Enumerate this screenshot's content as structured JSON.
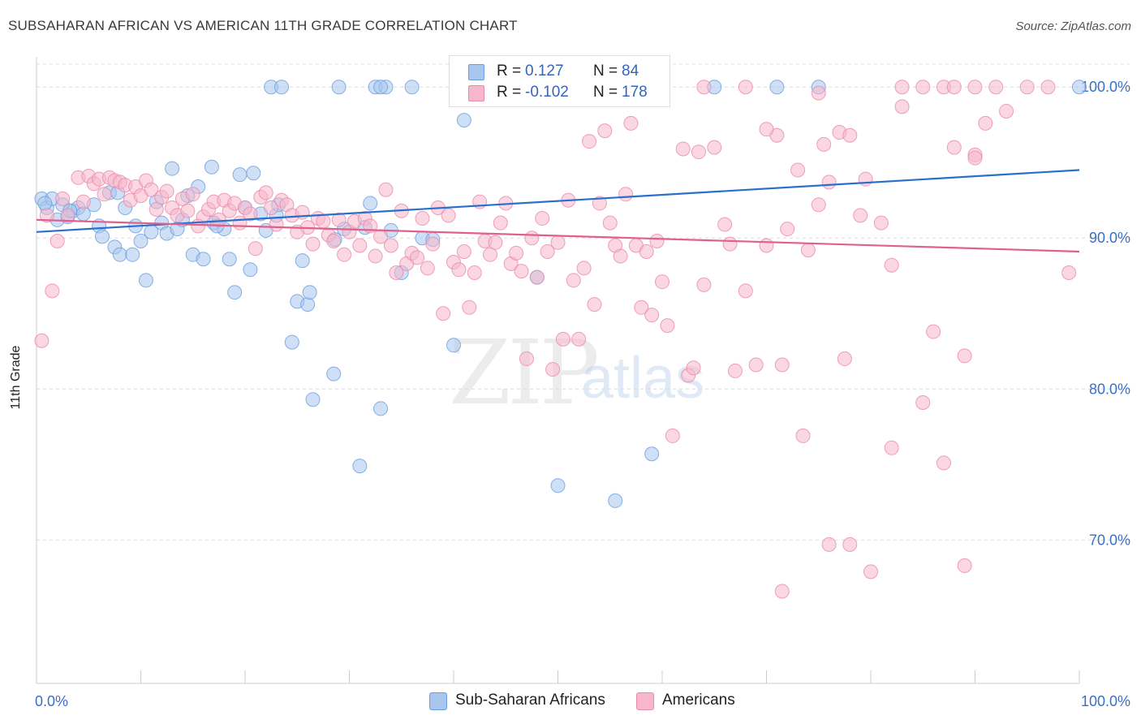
{
  "title": "SUBSAHARAN AFRICAN VS AMERICAN 11TH GRADE CORRELATION CHART",
  "source": "Source: ZipAtlas.com",
  "watermark": {
    "zip": "ZIP",
    "atlas": "atlas"
  },
  "stats": {
    "rows": [
      {
        "r_label": "R =",
        "r_value": "0.127",
        "n_label": "N =",
        "n_value": "84",
        "color": "#a8c6ee",
        "border": "#6a9ee0"
      },
      {
        "r_label": "R =",
        "r_value": "-0.102",
        "n_label": "N =",
        "n_value": "178",
        "color": "#f7b6cb",
        "border": "#e88aab"
      }
    ]
  },
  "legend": {
    "items": [
      {
        "label": "Sub-Saharan Africans",
        "color": "#a8c6ee",
        "border": "#6a9ee0"
      },
      {
        "label": "Americans",
        "color": "#f7b6cb",
        "border": "#e88aab"
      }
    ]
  },
  "chart_data": {
    "type": "scatter",
    "title": "SUBSAHARAN AFRICAN VS AMERICAN 11TH GRADE CORRELATION CHART",
    "xlabel": "",
    "ylabel": "11th Grade",
    "xlim": [
      0,
      100
    ],
    "ylim": [
      60.5,
      102
    ],
    "x_tick_labels": [
      "0.0%",
      "100.0%"
    ],
    "y_ticks": [
      70,
      80,
      90,
      100
    ],
    "y_tick_labels": [
      "70.0%",
      "80.0%",
      "90.0%",
      "100.0%"
    ],
    "grid": true,
    "legend_position": "bottom",
    "series": [
      {
        "name": "Sub-Saharan Africans",
        "color": "#6a9ee0",
        "fill": "#a8c6ee",
        "trend": {
          "x": [
            0,
            100
          ],
          "y": [
            90.4,
            94.5
          ],
          "color": "#2b6fcc"
        },
        "points": [
          [
            0.5,
            92.6
          ],
          [
            1,
            92.0
          ],
          [
            1.5,
            92.6
          ],
          [
            2,
            91.2
          ],
          [
            2.5,
            92.2
          ],
          [
            3,
            91.4
          ],
          [
            3.5,
            91.8
          ],
          [
            4,
            92.0
          ],
          [
            4.5,
            91.6
          ],
          [
            5.5,
            92.2
          ],
          [
            6,
            90.8
          ],
          [
            6.3,
            90.1
          ],
          [
            7,
            93.0
          ],
          [
            7.5,
            89.4
          ],
          [
            8,
            88.9
          ],
          [
            8.5,
            92.0
          ],
          [
            9.5,
            90.8
          ],
          [
            10,
            89.8
          ],
          [
            10.5,
            87.2
          ],
          [
            11,
            90.4
          ],
          [
            11.5,
            92.4
          ],
          [
            12,
            91.0
          ],
          [
            12.5,
            90.3
          ],
          [
            13,
            94.6
          ],
          [
            13.5,
            90.6
          ],
          [
            14,
            91.2
          ],
          [
            14.5,
            92.8
          ],
          [
            15,
            88.9
          ],
          [
            15.5,
            93.4
          ],
          [
            16,
            88.6
          ],
          [
            16.8,
            94.7
          ],
          [
            17,
            91.0
          ],
          [
            18,
            90.6
          ],
          [
            18.5,
            88.6
          ],
          [
            19,
            86.4
          ],
          [
            19.5,
            94.2
          ],
          [
            20,
            92.0
          ],
          [
            20.5,
            87.9
          ],
          [
            20.8,
            94.3
          ],
          [
            21.5,
            91.6
          ],
          [
            22,
            90.5
          ],
          [
            22.5,
            100
          ],
          [
            23,
            91.5
          ],
          [
            23.5,
            100
          ],
          [
            24.5,
            83.1
          ],
          [
            25,
            85.8
          ],
          [
            25.5,
            88.5
          ],
          [
            26,
            85.6
          ],
          [
            26.2,
            86.4
          ],
          [
            26.5,
            79.3
          ],
          [
            28.5,
            81.0
          ],
          [
            28.6,
            89.9
          ],
          [
            29,
            100
          ],
          [
            29.5,
            90.6
          ],
          [
            31,
            74.9
          ],
          [
            31.5,
            90.7
          ],
          [
            32,
            92.3
          ],
          [
            33,
            78.7
          ],
          [
            32.5,
            100
          ],
          [
            33.5,
            100
          ],
          [
            33,
            100
          ],
          [
            34,
            90.5
          ],
          [
            35,
            87.7
          ],
          [
            36,
            100
          ],
          [
            37,
            90
          ],
          [
            38,
            89.9
          ],
          [
            40,
            82.9
          ],
          [
            41,
            97.8
          ],
          [
            48,
            87.4
          ],
          [
            50,
            73.6
          ],
          [
            52,
            100
          ],
          [
            54,
            99.5
          ],
          [
            55.5,
            72.6
          ],
          [
            59,
            75.7
          ],
          [
            65,
            100
          ],
          [
            71,
            100
          ],
          [
            75,
            100
          ],
          [
            100,
            100
          ],
          [
            0.8,
            92.3
          ],
          [
            3.2,
            91.8
          ],
          [
            23.2,
            92.2
          ],
          [
            17.3,
            90.8
          ],
          [
            9.2,
            88.9
          ],
          [
            7.8,
            93
          ]
        ]
      },
      {
        "name": "Americans",
        "color": "#e88aab",
        "fill": "#f7b6cb",
        "trend": {
          "x": [
            0,
            100
          ],
          "y": [
            91.2,
            89.1
          ],
          "color": "#e0608c"
        },
        "points": [
          [
            0.5,
            83.2
          ],
          [
            1,
            91.5
          ],
          [
            1.5,
            86.5
          ],
          [
            2,
            89.8
          ],
          [
            2.5,
            92.6
          ],
          [
            3,
            91.5
          ],
          [
            4,
            94
          ],
          [
            4.5,
            92.4
          ],
          [
            5,
            94.1
          ],
          [
            5.5,
            93.6
          ],
          [
            6,
            93.9
          ],
          [
            6.5,
            92.9
          ],
          [
            7,
            94
          ],
          [
            7.5,
            93.8
          ],
          [
            8,
            93.7
          ],
          [
            8.5,
            93.5
          ],
          [
            9,
            92.5
          ],
          [
            9.5,
            93.4
          ],
          [
            10,
            92.8
          ],
          [
            10.5,
            93.8
          ],
          [
            11,
            93.2
          ],
          [
            11.5,
            91.9
          ],
          [
            12,
            92.7
          ],
          [
            12.5,
            93.1
          ],
          [
            13,
            92.0
          ],
          [
            13.5,
            91.5
          ],
          [
            14,
            92.6
          ],
          [
            14.5,
            91.8
          ],
          [
            15,
            92.9
          ],
          [
            15.5,
            90.8
          ],
          [
            16,
            91.4
          ],
          [
            16.5,
            91.9
          ],
          [
            17,
            92.4
          ],
          [
            17.5,
            91.2
          ],
          [
            18,
            92.5
          ],
          [
            18.5,
            91.8
          ],
          [
            19,
            92.3
          ],
          [
            19.5,
            91.0
          ],
          [
            20,
            92.0
          ],
          [
            20.5,
            91.6
          ],
          [
            21,
            89.3
          ],
          [
            21.5,
            92.7
          ],
          [
            22,
            93
          ],
          [
            22.5,
            92.0
          ],
          [
            23,
            90.9
          ],
          [
            23.5,
            92.5
          ],
          [
            24,
            92.2
          ],
          [
            24.5,
            91.5
          ],
          [
            25,
            90.4
          ],
          [
            25.5,
            91.7
          ],
          [
            26,
            90.7
          ],
          [
            26.5,
            89.6
          ],
          [
            27,
            91.3
          ],
          [
            27.5,
            91.1
          ],
          [
            28,
            90.2
          ],
          [
            28.5,
            89.8
          ],
          [
            29,
            91.2
          ],
          [
            29.5,
            88.9
          ],
          [
            30,
            90.4
          ],
          [
            30.5,
            91.1
          ],
          [
            31,
            89.5
          ],
          [
            31.5,
            91.3
          ],
          [
            32,
            90.8
          ],
          [
            32.5,
            88.8
          ],
          [
            33,
            90.1
          ],
          [
            33.5,
            93.2
          ],
          [
            34,
            89.5
          ],
          [
            34.5,
            87.7
          ],
          [
            35,
            91.8
          ],
          [
            35.5,
            88.3
          ],
          [
            36,
            89.0
          ],
          [
            36.5,
            88.7
          ],
          [
            37,
            91.3
          ],
          [
            37.5,
            88.0
          ],
          [
            38,
            89.6
          ],
          [
            38.5,
            92.0
          ],
          [
            39,
            85.0
          ],
          [
            39.5,
            91.5
          ],
          [
            40,
            88.4
          ],
          [
            40.5,
            87.9
          ],
          [
            41,
            89.1
          ],
          [
            41.5,
            85.4
          ],
          [
            42,
            87.7
          ],
          [
            42.5,
            92.4
          ],
          [
            43,
            89.8
          ],
          [
            43.5,
            88.9
          ],
          [
            44,
            89.7
          ],
          [
            44.5,
            91.0
          ],
          [
            45,
            92.3
          ],
          [
            45.5,
            88.3
          ],
          [
            46,
            89.0
          ],
          [
            46.5,
            87.8
          ],
          [
            47,
            82.0
          ],
          [
            47.5,
            90.0
          ],
          [
            48,
            87.4
          ],
          [
            48.5,
            91.3
          ],
          [
            49,
            89.1
          ],
          [
            49.5,
            81.3
          ],
          [
            50,
            89.7
          ],
          [
            50.5,
            83.3
          ],
          [
            51,
            92.5
          ],
          [
            51.5,
            87.2
          ],
          [
            52,
            83.3
          ],
          [
            52.5,
            88.0
          ],
          [
            53,
            96.4
          ],
          [
            53.5,
            85.6
          ],
          [
            54,
            92.3
          ],
          [
            54.5,
            97.1
          ],
          [
            55,
            91.0
          ],
          [
            55.5,
            89.5
          ],
          [
            56,
            88.8
          ],
          [
            56.5,
            92.9
          ],
          [
            57,
            97.6
          ],
          [
            57.5,
            89.5
          ],
          [
            58,
            85.4
          ],
          [
            58.5,
            89.1
          ],
          [
            59,
            84.9
          ],
          [
            59.5,
            89.8
          ],
          [
            60,
            87.1
          ],
          [
            60.5,
            84.2
          ],
          [
            61,
            76.9
          ],
          [
            62,
            95.9
          ],
          [
            62.5,
            80.9
          ],
          [
            63,
            81.4
          ],
          [
            63.5,
            95.7
          ],
          [
            64,
            86.9
          ],
          [
            65,
            96.0
          ],
          [
            66,
            90.9
          ],
          [
            66.5,
            89.6
          ],
          [
            67,
            81.2
          ],
          [
            68,
            86.5
          ],
          [
            69,
            81.6
          ],
          [
            70,
            89.5
          ],
          [
            71,
            96.8
          ],
          [
            71.5,
            81.6
          ],
          [
            72,
            90.6
          ],
          [
            73,
            94.5
          ],
          [
            73.5,
            76.9
          ],
          [
            74,
            89.2
          ],
          [
            75,
            92.2
          ],
          [
            75.5,
            96.2
          ],
          [
            76,
            93.7
          ],
          [
            77,
            97.0
          ],
          [
            77.5,
            82.0
          ],
          [
            78,
            96.8
          ],
          [
            79,
            91.5
          ],
          [
            79.5,
            93.9
          ],
          [
            80,
            67.9
          ],
          [
            81,
            91.0
          ],
          [
            82,
            76.1
          ],
          [
            83,
            98.7
          ],
          [
            85,
            79.1
          ],
          [
            86,
            83.8
          ],
          [
            87,
            75.1
          ],
          [
            88,
            96.0
          ],
          [
            89,
            82.2
          ],
          [
            90,
            95.5
          ],
          [
            91,
            97.6
          ],
          [
            92,
            100
          ],
          [
            93,
            98.4
          ],
          [
            95,
            100
          ],
          [
            97,
            100
          ],
          [
            99,
            87.7
          ],
          [
            83,
            100
          ],
          [
            76,
            69.7
          ],
          [
            71.5,
            66.6
          ],
          [
            89,
            68.3
          ],
          [
            70,
            97.2
          ],
          [
            75,
            99.6
          ],
          [
            78,
            69.7
          ],
          [
            87,
            100
          ],
          [
            85,
            100
          ],
          [
            90,
            100
          ],
          [
            64,
            100
          ],
          [
            68,
            100
          ],
          [
            88,
            100
          ],
          [
            90,
            95.3
          ],
          [
            82,
            88.2
          ]
        ]
      }
    ]
  }
}
